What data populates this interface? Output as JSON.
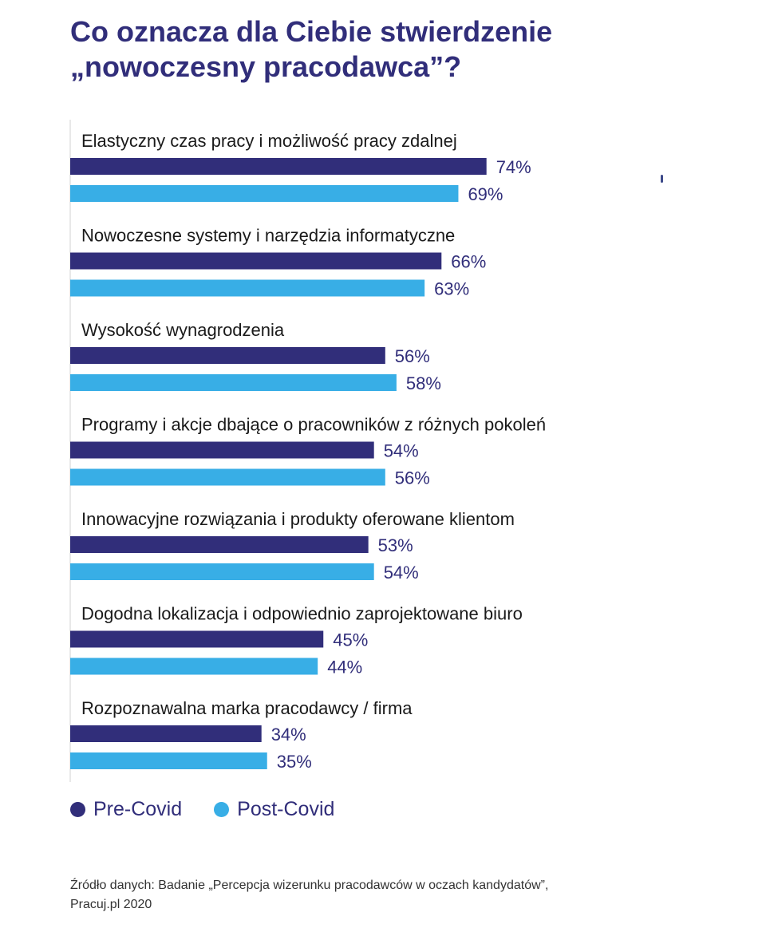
{
  "title": {
    "line1": "Co oznacza dla Ciebie stwierdzenie",
    "line2": "„nowoczesny pracodawca”?"
  },
  "colors": {
    "pre_covid": "#312e7a",
    "post_covid": "#38aee6",
    "title": "#312e7a"
  },
  "chart_data": {
    "type": "bar",
    "orientation": "horizontal",
    "categories": [
      "Elastyczny czas pracy i możliwość pracy zdalnej",
      "Nowoczesne systemy i narzędzia informatyczne",
      "Wysokość wynagrodzenia",
      "Programy i akcje dbające o pracowników z różnych pokoleń",
      "Innowacyjne rozwiązania i produkty oferowane klientom",
      "Dogodna lokalizacja i odpowiednio zaprojektowane biuro",
      "Rozpoznawalna marka pracodawcy / firma"
    ],
    "series": [
      {
        "name": "Pre-Covid",
        "values": [
          74,
          66,
          56,
          54,
          53,
          45,
          34
        ]
      },
      {
        "name": "Post-Covid",
        "values": [
          69,
          63,
          58,
          56,
          54,
          44,
          35
        ]
      }
    ],
    "value_suffix": "%",
    "legend": "bottom-left",
    "grid": false
  },
  "legend": {
    "items": [
      {
        "label": "Pre-Covid",
        "color": "#312e7a"
      },
      {
        "label": "Post-Covid",
        "color": "#38aee6"
      }
    ]
  },
  "source": {
    "line1": "Źródło danych: Badanie „Percepcja wizerunku pracodawców w oczach kandydatów”,",
    "line2": "Pracuj.pl 2020"
  }
}
